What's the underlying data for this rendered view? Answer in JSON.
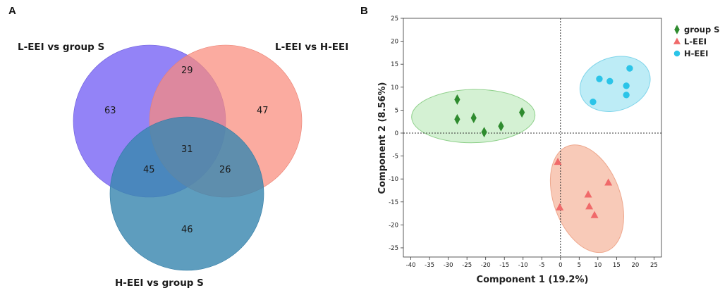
{
  "panels": {
    "a_letter": "A",
    "b_letter": "B"
  },
  "chart_data": [
    {
      "type": "venn",
      "sets": [
        {
          "name": "L-EEI vs group S",
          "color": "#7b68f5"
        },
        {
          "name": "L-EEI vs H-EEI",
          "color": "#f98b7c"
        },
        {
          "name": "H-EEI vs group S",
          "color": "#3a87b0"
        }
      ],
      "regions": {
        "only_set1": 63,
        "only_set2": 47,
        "only_set3": 46,
        "set1_set2": 29,
        "set1_set3": 45,
        "set2_set3": 26,
        "all_three": 31
      }
    },
    {
      "type": "scatter",
      "title": "",
      "xlabel": "Component 1 (19.2%)",
      "ylabel": "Component 2 (8.56%)",
      "xlim": [
        -42,
        27
      ],
      "ylim": [
        -27,
        25
      ],
      "xticks": [
        -40,
        -35,
        -30,
        -25,
        -20,
        -15,
        -10,
        -5,
        0,
        5,
        10,
        15,
        20,
        25
      ],
      "yticks": [
        25,
        20,
        15,
        10,
        5,
        0,
        -5,
        -10,
        -15,
        -20,
        -25
      ],
      "reference_lines": {
        "x": 0,
        "y": 0
      },
      "legend_position": "outside-top-right",
      "series": [
        {
          "name": "group S",
          "marker": "diamond",
          "color": "#2e8b2e",
          "ellipse_fill": "#cdeecb",
          "ellipse_stroke": "#8fd08b",
          "ellipse": {
            "cx": -23.3,
            "cy": 3.7,
            "rx": 16.5,
            "ry": 5.8,
            "angle": -1
          },
          "points": [
            [
              -27.6,
              7.3
            ],
            [
              -27.6,
              3.0
            ],
            [
              -23.2,
              3.3
            ],
            [
              -20.4,
              0.2
            ],
            [
              -15.9,
              1.5
            ],
            [
              -10.3,
              4.5
            ]
          ]
        },
        {
          "name": "L-EEI",
          "marker": "triangle",
          "color": "#f06a6a",
          "ellipse_fill": "#f7c1ac",
          "ellipse_stroke": "#eea88e",
          "ellipse": {
            "cx": 7.1,
            "cy": -14.3,
            "rx": 8.9,
            "ry": 12.2,
            "angle": -20
          },
          "points": [
            [
              -0.7,
              -6.3
            ],
            [
              -0.2,
              -16.2
            ],
            [
              7.4,
              -13.4
            ],
            [
              7.7,
              -16.0
            ],
            [
              9.1,
              -17.9
            ],
            [
              12.8,
              -10.8
            ]
          ]
        },
        {
          "name": "H-EEI",
          "marker": "circle",
          "color": "#2bc4e8",
          "ellipse_fill": "#b2e9f5",
          "ellipse_stroke": "#7fd4ea",
          "ellipse": {
            "cx": 14.6,
            "cy": 10.7,
            "rx": 9.6,
            "ry": 5.8,
            "angle": -18
          },
          "points": [
            [
              8.7,
              6.8
            ],
            [
              10.4,
              11.8
            ],
            [
              13.2,
              11.3
            ],
            [
              17.6,
              10.3
            ],
            [
              17.6,
              8.3
            ],
            [
              18.5,
              14.1
            ]
          ]
        }
      ]
    }
  ]
}
